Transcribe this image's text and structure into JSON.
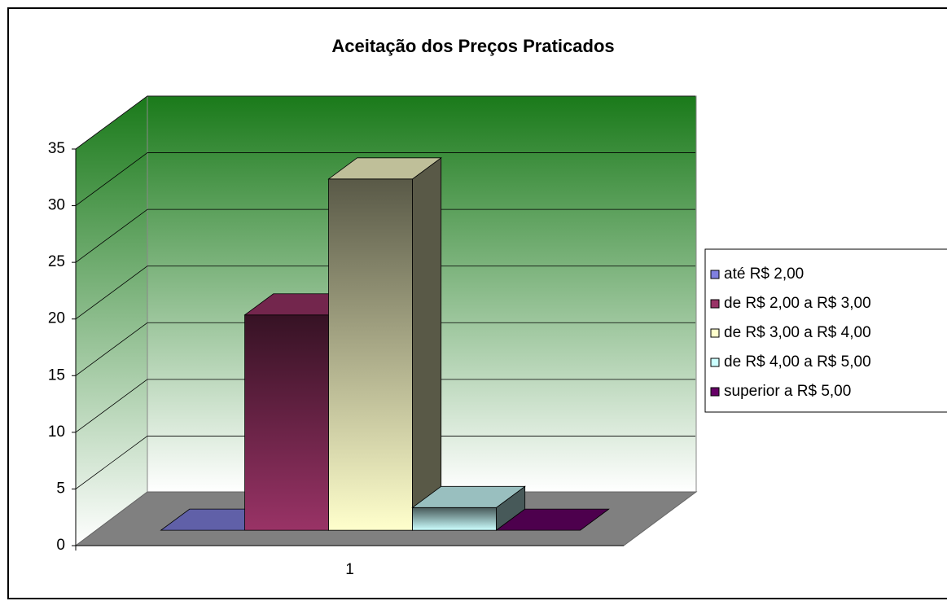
{
  "chart_data": {
    "type": "bar3d",
    "title": "Aceitação dos Preços Praticados",
    "categories": [
      "1"
    ],
    "series": [
      {
        "name": "até R$ 2,00",
        "color": "#8080e0",
        "values": [
          0
        ]
      },
      {
        "name": "de R$ 2,00 a R$ 3,00",
        "color": "#993366",
        "values": [
          19
        ]
      },
      {
        "name": "de R$ 3,00 a R$ 4,00",
        "color": "#ffffcc",
        "values": [
          31
        ]
      },
      {
        "name": "de R$ 4,00 a R$ 5,00",
        "color": "#ccffff",
        "values": [
          2
        ]
      },
      {
        "name": "superior a R$ 5,00",
        "color": "#660066",
        "values": [
          0
        ]
      }
    ],
    "ylim": [
      0,
      35
    ],
    "yticks": [
      0,
      5,
      10,
      15,
      20,
      25,
      30,
      35
    ],
    "grid": true,
    "legend": "right"
  }
}
